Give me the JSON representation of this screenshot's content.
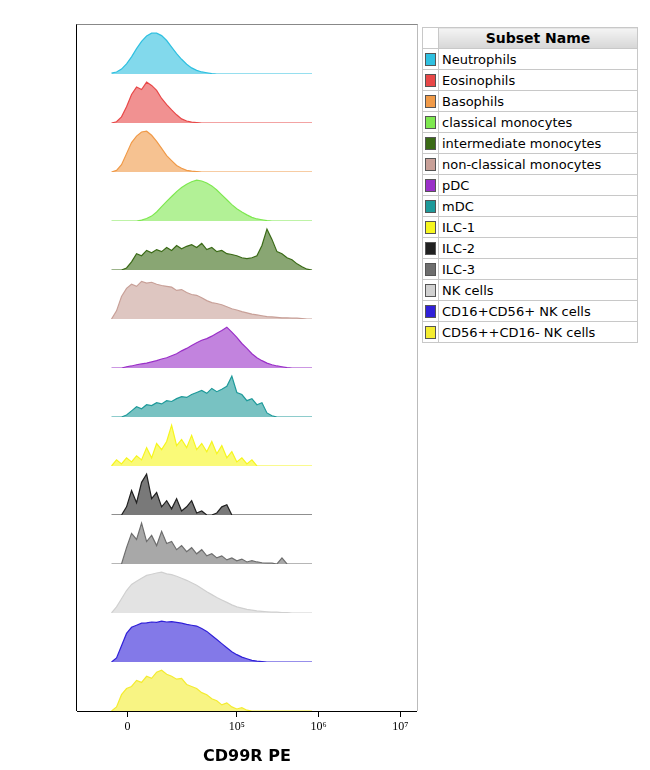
{
  "chart_data": {
    "type": "area",
    "x_label": "CD99R PE",
    "log": "x",
    "grid": false,
    "tick_labels": "x",
    "legend": "right",
    "legend_title": "Subset Name",
    "xlim": [
      -18000,
      16000000
    ],
    "xticks": [
      {
        "value": 0,
        "label": "0"
      },
      {
        "value": 100000,
        "label": "10⁵"
      },
      {
        "value": 1000000,
        "label": "10⁶"
      },
      {
        "value": 10000000,
        "label": "10⁷"
      }
    ],
    "ylim": [
      0,
      120
    ],
    "x": [
      -4300,
      -2900,
      -1570,
      -260,
      1040,
      2360,
      3730,
      5180,
      6730,
      8410,
      10250,
      12320,
      14590,
      17170,
      20080,
      23450,
      27220,
      31590,
      36610,
      42380,
      48950,
      56480,
      65110,
      75130,
      86590,
      99700,
      115000,
      132600,
      152700,
      175900,
      202700,
      233400,
      268800,
      309500,
      356400,
      410700,
      472900,
      544700,
      627200,
      722200,
      831700
    ],
    "series": [
      {
        "name": "Neutrophils",
        "color": "#2fc0e0",
        "values": [
          2,
          5,
          12,
          25,
          42,
          62,
          80,
          93,
          100,
          100,
          94,
          82,
          66,
          50,
          36,
          24,
          15,
          9,
          5,
          3,
          1,
          0,
          0,
          0,
          0,
          0,
          0,
          0,
          0,
          0,
          0,
          0,
          0,
          0,
          0,
          0,
          0,
          0,
          0,
          0,
          0
        ]
      },
      {
        "name": "Eosinophils",
        "color": "#e84848",
        "values": [
          0,
          3,
          15,
          40,
          70,
          88,
          82,
          100,
          92,
          80,
          60,
          45,
          32,
          20,
          10,
          5,
          2,
          1,
          0,
          0,
          0,
          0,
          0,
          0,
          0,
          0,
          0,
          0,
          0,
          0,
          0,
          0,
          0,
          0,
          0,
          0,
          0,
          0,
          0,
          0,
          0
        ]
      },
      {
        "name": "Basophils",
        "color": "#f09a48",
        "values": [
          0,
          4,
          18,
          45,
          72,
          88,
          98,
          100,
          90,
          75,
          58,
          40,
          28,
          16,
          9,
          4,
          2,
          1,
          0,
          0,
          0,
          0,
          0,
          0,
          0,
          0,
          0,
          0,
          0,
          0,
          0,
          0,
          0,
          0,
          0,
          0,
          0,
          0,
          0,
          0,
          0
        ]
      },
      {
        "name": "classical monocytes",
        "color": "#7ee850",
        "values": [
          0,
          0,
          0,
          0,
          0,
          0,
          2,
          6,
          12,
          22,
          35,
          48,
          60,
          72,
          82,
          90,
          96,
          100,
          98,
          93,
          86,
          76,
          64,
          52,
          40,
          30,
          22,
          15,
          9,
          5,
          3,
          1,
          0,
          0,
          0,
          0,
          0,
          0,
          0,
          0,
          0
        ]
      },
      {
        "name": "intermediate monocytes",
        "color": "#3a6a16",
        "values": [
          0,
          0,
          0,
          5,
          20,
          40,
          35,
          48,
          42,
          50,
          45,
          55,
          48,
          60,
          52,
          58,
          62,
          55,
          65,
          50,
          55,
          45,
          48,
          40,
          38,
          35,
          30,
          28,
          30,
          35,
          60,
          100,
          75,
          45,
          40,
          30,
          25,
          15,
          8,
          2,
          0
        ]
      },
      {
        "name": "non-classical monocytes",
        "color": "#c8a098",
        "values": [
          0,
          20,
          55,
          75,
          85,
          80,
          92,
          88,
          90,
          85,
          82,
          80,
          78,
          70,
          72,
          65,
          60,
          58,
          52,
          45,
          40,
          38,
          35,
          30,
          25,
          22,
          18,
          15,
          12,
          10,
          8,
          6,
          5,
          4,
          3,
          3,
          2,
          2,
          1,
          0,
          0
        ]
      },
      {
        "name": "pDC",
        "color": "#9a30c8",
        "values": [
          0,
          0,
          0,
          3,
          5,
          8,
          10,
          12,
          15,
          18,
          22,
          25,
          30,
          35,
          42,
          48,
          55,
          62,
          68,
          72,
          78,
          85,
          92,
          100,
          88,
          75,
          60,
          48,
          35,
          25,
          18,
          12,
          8,
          5,
          3,
          1,
          0,
          0,
          0,
          0,
          0
        ]
      },
      {
        "name": "mDC",
        "color": "#1e9a9a",
        "values": [
          0,
          0,
          0,
          5,
          15,
          25,
          20,
          30,
          28,
          35,
          32,
          40,
          38,
          45,
          50,
          48,
          55,
          60,
          65,
          58,
          70,
          62,
          68,
          75,
          100,
          60,
          55,
          40,
          45,
          30,
          35,
          10,
          3,
          0,
          0,
          0,
          0,
          0,
          0,
          0,
          0
        ]
      },
      {
        "name": "ILC-1",
        "color": "#f6f61e",
        "values": [
          0,
          15,
          5,
          20,
          10,
          25,
          15,
          45,
          20,
          55,
          40,
          60,
          100,
          50,
          65,
          45,
          75,
          40,
          55,
          35,
          60,
          30,
          50,
          20,
          35,
          10,
          20,
          5,
          15,
          0,
          0,
          0,
          0,
          0,
          0,
          0,
          0,
          0,
          0,
          0,
          0
        ]
      },
      {
        "name": "ILC-2",
        "color": "#202020",
        "values": [
          0,
          0,
          0,
          20,
          60,
          30,
          80,
          100,
          40,
          55,
          20,
          35,
          15,
          40,
          10,
          20,
          35,
          5,
          10,
          0,
          0,
          5,
          20,
          25,
          0,
          0,
          0,
          0,
          0,
          0,
          0,
          0,
          0,
          0,
          0,
          0,
          0,
          0,
          0,
          0,
          0
        ]
      },
      {
        "name": "ILC-3",
        "color": "#6e6e6e",
        "values": [
          0,
          0,
          0,
          40,
          75,
          60,
          100,
          55,
          70,
          45,
          80,
          50,
          55,
          35,
          45,
          30,
          40,
          25,
          35,
          20,
          25,
          15,
          20,
          10,
          15,
          8,
          12,
          5,
          8,
          5,
          3,
          2,
          2,
          0,
          15,
          0,
          0,
          0,
          0,
          0,
          0
        ]
      },
      {
        "name": "NK cells",
        "color": "#d0d0d0",
        "values": [
          0,
          15,
          35,
          55,
          70,
          78,
          85,
          92,
          95,
          98,
          100,
          96,
          94,
          90,
          85,
          80,
          74,
          68,
          60,
          52,
          45,
          38,
          32,
          26,
          20,
          15,
          12,
          9,
          7,
          5,
          4,
          3,
          2,
          2,
          1,
          1,
          0,
          0,
          0,
          0,
          0
        ]
      },
      {
        "name": "CD16+CD56+ NK cells",
        "color": "#3020d8",
        "values": [
          0,
          10,
          40,
          70,
          85,
          90,
          95,
          96,
          98,
          97,
          100,
          98,
          99,
          97,
          95,
          92,
          90,
          88,
          82,
          75,
          65,
          55,
          45,
          35,
          25,
          18,
          12,
          8,
          4,
          2,
          1,
          0,
          0,
          0,
          0,
          0,
          0,
          0,
          0,
          0,
          0
        ]
      },
      {
        "name": "CD56++CD16- NK cells",
        "color": "#f4ec30",
        "values": [
          0,
          10,
          40,
          55,
          60,
          75,
          70,
          85,
          80,
          95,
          100,
          90,
          85,
          78,
          80,
          65,
          60,
          55,
          45,
          40,
          30,
          25,
          15,
          20,
          10,
          5,
          8,
          2,
          0,
          0,
          0,
          0,
          0,
          0,
          0,
          0,
          0,
          0,
          0,
          0,
          0
        ]
      }
    ]
  }
}
